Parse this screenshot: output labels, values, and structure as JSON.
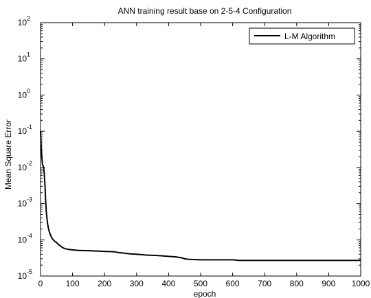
{
  "chart_data": {
    "type": "line",
    "title": "ANN training result base on 2-5-4 Configuration",
    "xlabel": "epoch",
    "ylabel": "Mean Square Error",
    "xlim": [
      0,
      1000
    ],
    "ylim": [
      1e-05,
      100
    ],
    "yscale": "log",
    "grid": false,
    "legend_position": "top-right",
    "x_ticks": [
      "0",
      "100",
      "200",
      "300",
      "400",
      "500",
      "600",
      "700",
      "800",
      "900",
      "1000"
    ],
    "y_ticks": [
      {
        "base": "10",
        "exp": "-5"
      },
      {
        "base": "10",
        "exp": "-4"
      },
      {
        "base": "10",
        "exp": "-3"
      },
      {
        "base": "10",
        "exp": "-2"
      },
      {
        "base": "10",
        "exp": "-1"
      },
      {
        "base": "10",
        "exp": "0"
      },
      {
        "base": "10",
        "exp": "1"
      },
      {
        "base": "10",
        "exp": "2"
      }
    ],
    "series": [
      {
        "name": "L-M Algorithm",
        "color": "#000000",
        "x": [
          0,
          2,
          4,
          6,
          8,
          10,
          12,
          14,
          16,
          18,
          20,
          22,
          25,
          28,
          32,
          36,
          40,
          45,
          50,
          55,
          60,
          70,
          80,
          90,
          100,
          120,
          150,
          200,
          230,
          240,
          260,
          280,
          300,
          330,
          360,
          380,
          400,
          420,
          440,
          450,
          460,
          500,
          550,
          600,
          620,
          630,
          700,
          800,
          900,
          1000
        ],
        "y": [
          0.1,
          0.04,
          0.02,
          0.012,
          0.011,
          0.01,
          0.006,
          0.003,
          0.0012,
          0.0006,
          0.0004,
          0.00028,
          0.0002,
          0.00016,
          0.00013,
          0.00011,
          0.0001,
          9e-05,
          8.5e-05,
          7.5e-05,
          7e-05,
          6e-05,
          5.6e-05,
          5.4e-05,
          5.3e-05,
          5.1e-05,
          5e-05,
          4.8e-05,
          4.7e-05,
          4.5e-05,
          4.3e-05,
          4.1e-05,
          4e-05,
          3.8e-05,
          3.7e-05,
          3.6e-05,
          3.5e-05,
          3.4e-05,
          3.2e-05,
          3e-05,
          2.9e-05,
          2.8e-05,
          2.8e-05,
          2.8e-05,
          2.7e-05,
          2.7e-05,
          2.7e-05,
          2.7e-05,
          2.7e-05,
          2.7e-05
        ]
      }
    ]
  }
}
